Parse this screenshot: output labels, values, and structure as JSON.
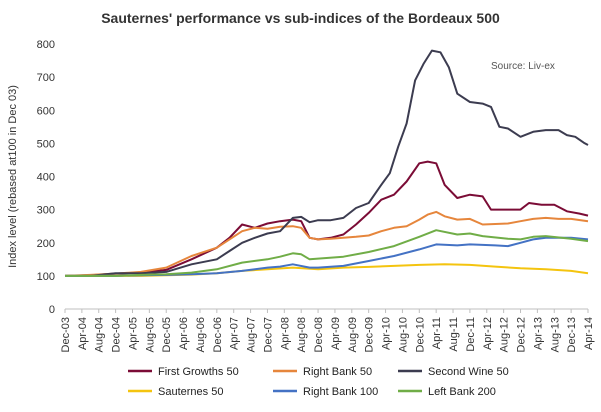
{
  "chart_data": {
    "type": "line",
    "title": "Sauternes' performance vs sub-indices of the Bordeaux 500",
    "ylabel": "Index level (rebased at100 in Dec 03)",
    "xlabel": "",
    "annotation": "Source: Liv-ex",
    "ylim": [
      0,
      800
    ],
    "yticks": [
      0,
      100,
      200,
      300,
      400,
      500,
      600,
      700,
      800
    ],
    "grid": false,
    "legend_position": "bottom",
    "x_months": [
      "2003-12",
      "2014-04"
    ],
    "x_ticks": [
      "Dec-03",
      "Apr-04",
      "Aug-04",
      "Dec-04",
      "Apr-05",
      "Aug-05",
      "Dec-05",
      "Apr-06",
      "Aug-06",
      "Dec-06",
      "Apr-07",
      "Aug-07",
      "Dec-07",
      "Apr-08",
      "Aug-08",
      "Dec-08",
      "Apr-09",
      "Aug-09",
      "Dec-09",
      "Apr-10",
      "Aug-10",
      "Dec-10",
      "Apr-11",
      "Aug-11",
      "Dec-11",
      "Apr-12",
      "Aug-12",
      "Dec-12",
      "Apr-13",
      "Aug-13",
      "Dec-13",
      "Apr-14"
    ],
    "series": [
      {
        "name": "First Growths 50",
        "color": "#7b0c36",
        "points": [
          [
            "2003-12",
            100
          ],
          [
            "2004-06",
            102
          ],
          [
            "2004-12",
            107
          ],
          [
            "2005-06",
            110
          ],
          [
            "2005-12",
            118
          ],
          [
            "2006-06",
            150
          ],
          [
            "2006-12",
            185
          ],
          [
            "2007-03",
            215
          ],
          [
            "2007-06",
            255
          ],
          [
            "2007-09",
            245
          ],
          [
            "2007-12",
            258
          ],
          [
            "2008-03",
            265
          ],
          [
            "2008-06",
            270
          ],
          [
            "2008-08",
            265
          ],
          [
            "2008-10",
            215
          ],
          [
            "2008-12",
            210
          ],
          [
            "2009-03",
            215
          ],
          [
            "2009-06",
            225
          ],
          [
            "2009-09",
            255
          ],
          [
            "2009-12",
            290
          ],
          [
            "2010-03",
            330
          ],
          [
            "2010-06",
            345
          ],
          [
            "2010-09",
            385
          ],
          [
            "2010-12",
            440
          ],
          [
            "2011-02",
            445
          ],
          [
            "2011-04",
            440
          ],
          [
            "2011-06",
            375
          ],
          [
            "2011-09",
            335
          ],
          [
            "2011-12",
            345
          ],
          [
            "2012-03",
            340
          ],
          [
            "2012-05",
            300
          ],
          [
            "2012-09",
            300
          ],
          [
            "2012-12",
            300
          ],
          [
            "2013-02",
            320
          ],
          [
            "2013-05",
            315
          ],
          [
            "2013-08",
            315
          ],
          [
            "2013-11",
            295
          ],
          [
            "2014-02",
            288
          ],
          [
            "2014-04",
            282
          ]
        ]
      },
      {
        "name": "Right Bank 50",
        "color": "#e6863c",
        "points": [
          [
            "2003-12",
            100
          ],
          [
            "2004-06",
            103
          ],
          [
            "2004-12",
            107
          ],
          [
            "2005-06",
            112
          ],
          [
            "2005-12",
            125
          ],
          [
            "2006-06",
            160
          ],
          [
            "2006-12",
            185
          ],
          [
            "2007-03",
            210
          ],
          [
            "2007-06",
            235
          ],
          [
            "2007-09",
            245
          ],
          [
            "2007-12",
            242
          ],
          [
            "2008-03",
            248
          ],
          [
            "2008-06",
            250
          ],
          [
            "2008-08",
            245
          ],
          [
            "2008-10",
            215
          ],
          [
            "2008-12",
            210
          ],
          [
            "2009-03",
            212
          ],
          [
            "2009-06",
            215
          ],
          [
            "2009-09",
            218
          ],
          [
            "2009-12",
            222
          ],
          [
            "2010-03",
            235
          ],
          [
            "2010-06",
            245
          ],
          [
            "2010-09",
            250
          ],
          [
            "2010-12",
            270
          ],
          [
            "2011-02",
            285
          ],
          [
            "2011-04",
            293
          ],
          [
            "2011-06",
            280
          ],
          [
            "2011-09",
            270
          ],
          [
            "2011-12",
            272
          ],
          [
            "2012-03",
            255
          ],
          [
            "2012-09",
            258
          ],
          [
            "2012-12",
            265
          ],
          [
            "2013-03",
            272
          ],
          [
            "2013-06",
            275
          ],
          [
            "2013-09",
            272
          ],
          [
            "2013-12",
            272
          ],
          [
            "2014-04",
            265
          ]
        ]
      },
      {
        "name": "Second Wine 50",
        "color": "#3c3c50",
        "points": [
          [
            "2003-12",
            100
          ],
          [
            "2004-06",
            100
          ],
          [
            "2004-12",
            108
          ],
          [
            "2005-06",
            108
          ],
          [
            "2005-12",
            112
          ],
          [
            "2006-06",
            135
          ],
          [
            "2006-12",
            150
          ],
          [
            "2007-03",
            175
          ],
          [
            "2007-06",
            200
          ],
          [
            "2007-09",
            215
          ],
          [
            "2007-12",
            228
          ],
          [
            "2008-03",
            235
          ],
          [
            "2008-06",
            275
          ],
          [
            "2008-08",
            278
          ],
          [
            "2008-10",
            262
          ],
          [
            "2008-12",
            268
          ],
          [
            "2009-03",
            268
          ],
          [
            "2009-06",
            275
          ],
          [
            "2009-09",
            305
          ],
          [
            "2009-12",
            320
          ],
          [
            "2010-03",
            375
          ],
          [
            "2010-05",
            410
          ],
          [
            "2010-07",
            490
          ],
          [
            "2010-09",
            560
          ],
          [
            "2010-11",
            690
          ],
          [
            "2011-01",
            740
          ],
          [
            "2011-03",
            780
          ],
          [
            "2011-05",
            775
          ],
          [
            "2011-07",
            730
          ],
          [
            "2011-09",
            650
          ],
          [
            "2011-12",
            625
          ],
          [
            "2012-03",
            620
          ],
          [
            "2012-05",
            610
          ],
          [
            "2012-07",
            550
          ],
          [
            "2012-09",
            545
          ],
          [
            "2012-12",
            520
          ],
          [
            "2013-03",
            535
          ],
          [
            "2013-06",
            540
          ],
          [
            "2013-09",
            540
          ],
          [
            "2013-11",
            525
          ],
          [
            "2014-01",
            520
          ],
          [
            "2014-03",
            502
          ],
          [
            "2014-04",
            495
          ]
        ]
      },
      {
        "name": "Sauternes 50",
        "color": "#f4c40f",
        "points": [
          [
            "2003-12",
            100
          ],
          [
            "2004-06",
            100
          ],
          [
            "2004-12",
            100
          ],
          [
            "2005-06",
            100
          ],
          [
            "2005-12",
            102
          ],
          [
            "2006-06",
            104
          ],
          [
            "2006-12",
            108
          ],
          [
            "2007-06",
            115
          ],
          [
            "2007-12",
            120
          ],
          [
            "2008-06",
            125
          ],
          [
            "2008-12",
            120
          ],
          [
            "2009-06",
            125
          ],
          [
            "2009-12",
            127
          ],
          [
            "2010-06",
            130
          ],
          [
            "2010-12",
            133
          ],
          [
            "2011-06",
            135
          ],
          [
            "2011-12",
            133
          ],
          [
            "2012-06",
            128
          ],
          [
            "2012-12",
            123
          ],
          [
            "2013-06",
            120
          ],
          [
            "2013-12",
            115
          ],
          [
            "2014-04",
            108
          ]
        ]
      },
      {
        "name": "Right Bank 100",
        "color": "#4472c4",
        "points": [
          [
            "2003-12",
            100
          ],
          [
            "2004-06",
            100
          ],
          [
            "2004-12",
            100
          ],
          [
            "2005-06",
            102
          ],
          [
            "2005-12",
            103
          ],
          [
            "2006-06",
            105
          ],
          [
            "2006-12",
            108
          ],
          [
            "2007-06",
            115
          ],
          [
            "2007-12",
            125
          ],
          [
            "2008-03",
            128
          ],
          [
            "2008-06",
            135
          ],
          [
            "2008-10",
            125
          ],
          [
            "2008-12",
            125
          ],
          [
            "2009-06",
            130
          ],
          [
            "2009-12",
            145
          ],
          [
            "2010-06",
            160
          ],
          [
            "2010-12",
            180
          ],
          [
            "2011-04",
            195
          ],
          [
            "2011-09",
            192
          ],
          [
            "2011-12",
            195
          ],
          [
            "2012-06",
            192
          ],
          [
            "2012-09",
            190
          ],
          [
            "2012-12",
            200
          ],
          [
            "2013-03",
            210
          ],
          [
            "2013-06",
            215
          ],
          [
            "2013-12",
            215
          ],
          [
            "2014-04",
            210
          ]
        ]
      },
      {
        "name": "Left Bank 200",
        "color": "#70ad47",
        "points": [
          [
            "2003-12",
            100
          ],
          [
            "2004-06",
            100
          ],
          [
            "2004-12",
            100
          ],
          [
            "2005-06",
            103
          ],
          [
            "2005-12",
            105
          ],
          [
            "2006-06",
            110
          ],
          [
            "2006-12",
            120
          ],
          [
            "2007-06",
            140
          ],
          [
            "2007-12",
            150
          ],
          [
            "2008-03",
            158
          ],
          [
            "2008-06",
            168
          ],
          [
            "2008-08",
            165
          ],
          [
            "2008-10",
            150
          ],
          [
            "2008-12",
            152
          ],
          [
            "2009-06",
            158
          ],
          [
            "2009-12",
            172
          ],
          [
            "2010-06",
            190
          ],
          [
            "2010-12",
            218
          ],
          [
            "2011-04",
            238
          ],
          [
            "2011-09",
            225
          ],
          [
            "2011-12",
            228
          ],
          [
            "2012-03",
            220
          ],
          [
            "2012-09",
            212
          ],
          [
            "2012-12",
            210
          ],
          [
            "2013-03",
            218
          ],
          [
            "2013-06",
            220
          ],
          [
            "2013-12",
            212
          ],
          [
            "2014-04",
            205
          ]
        ]
      }
    ]
  }
}
